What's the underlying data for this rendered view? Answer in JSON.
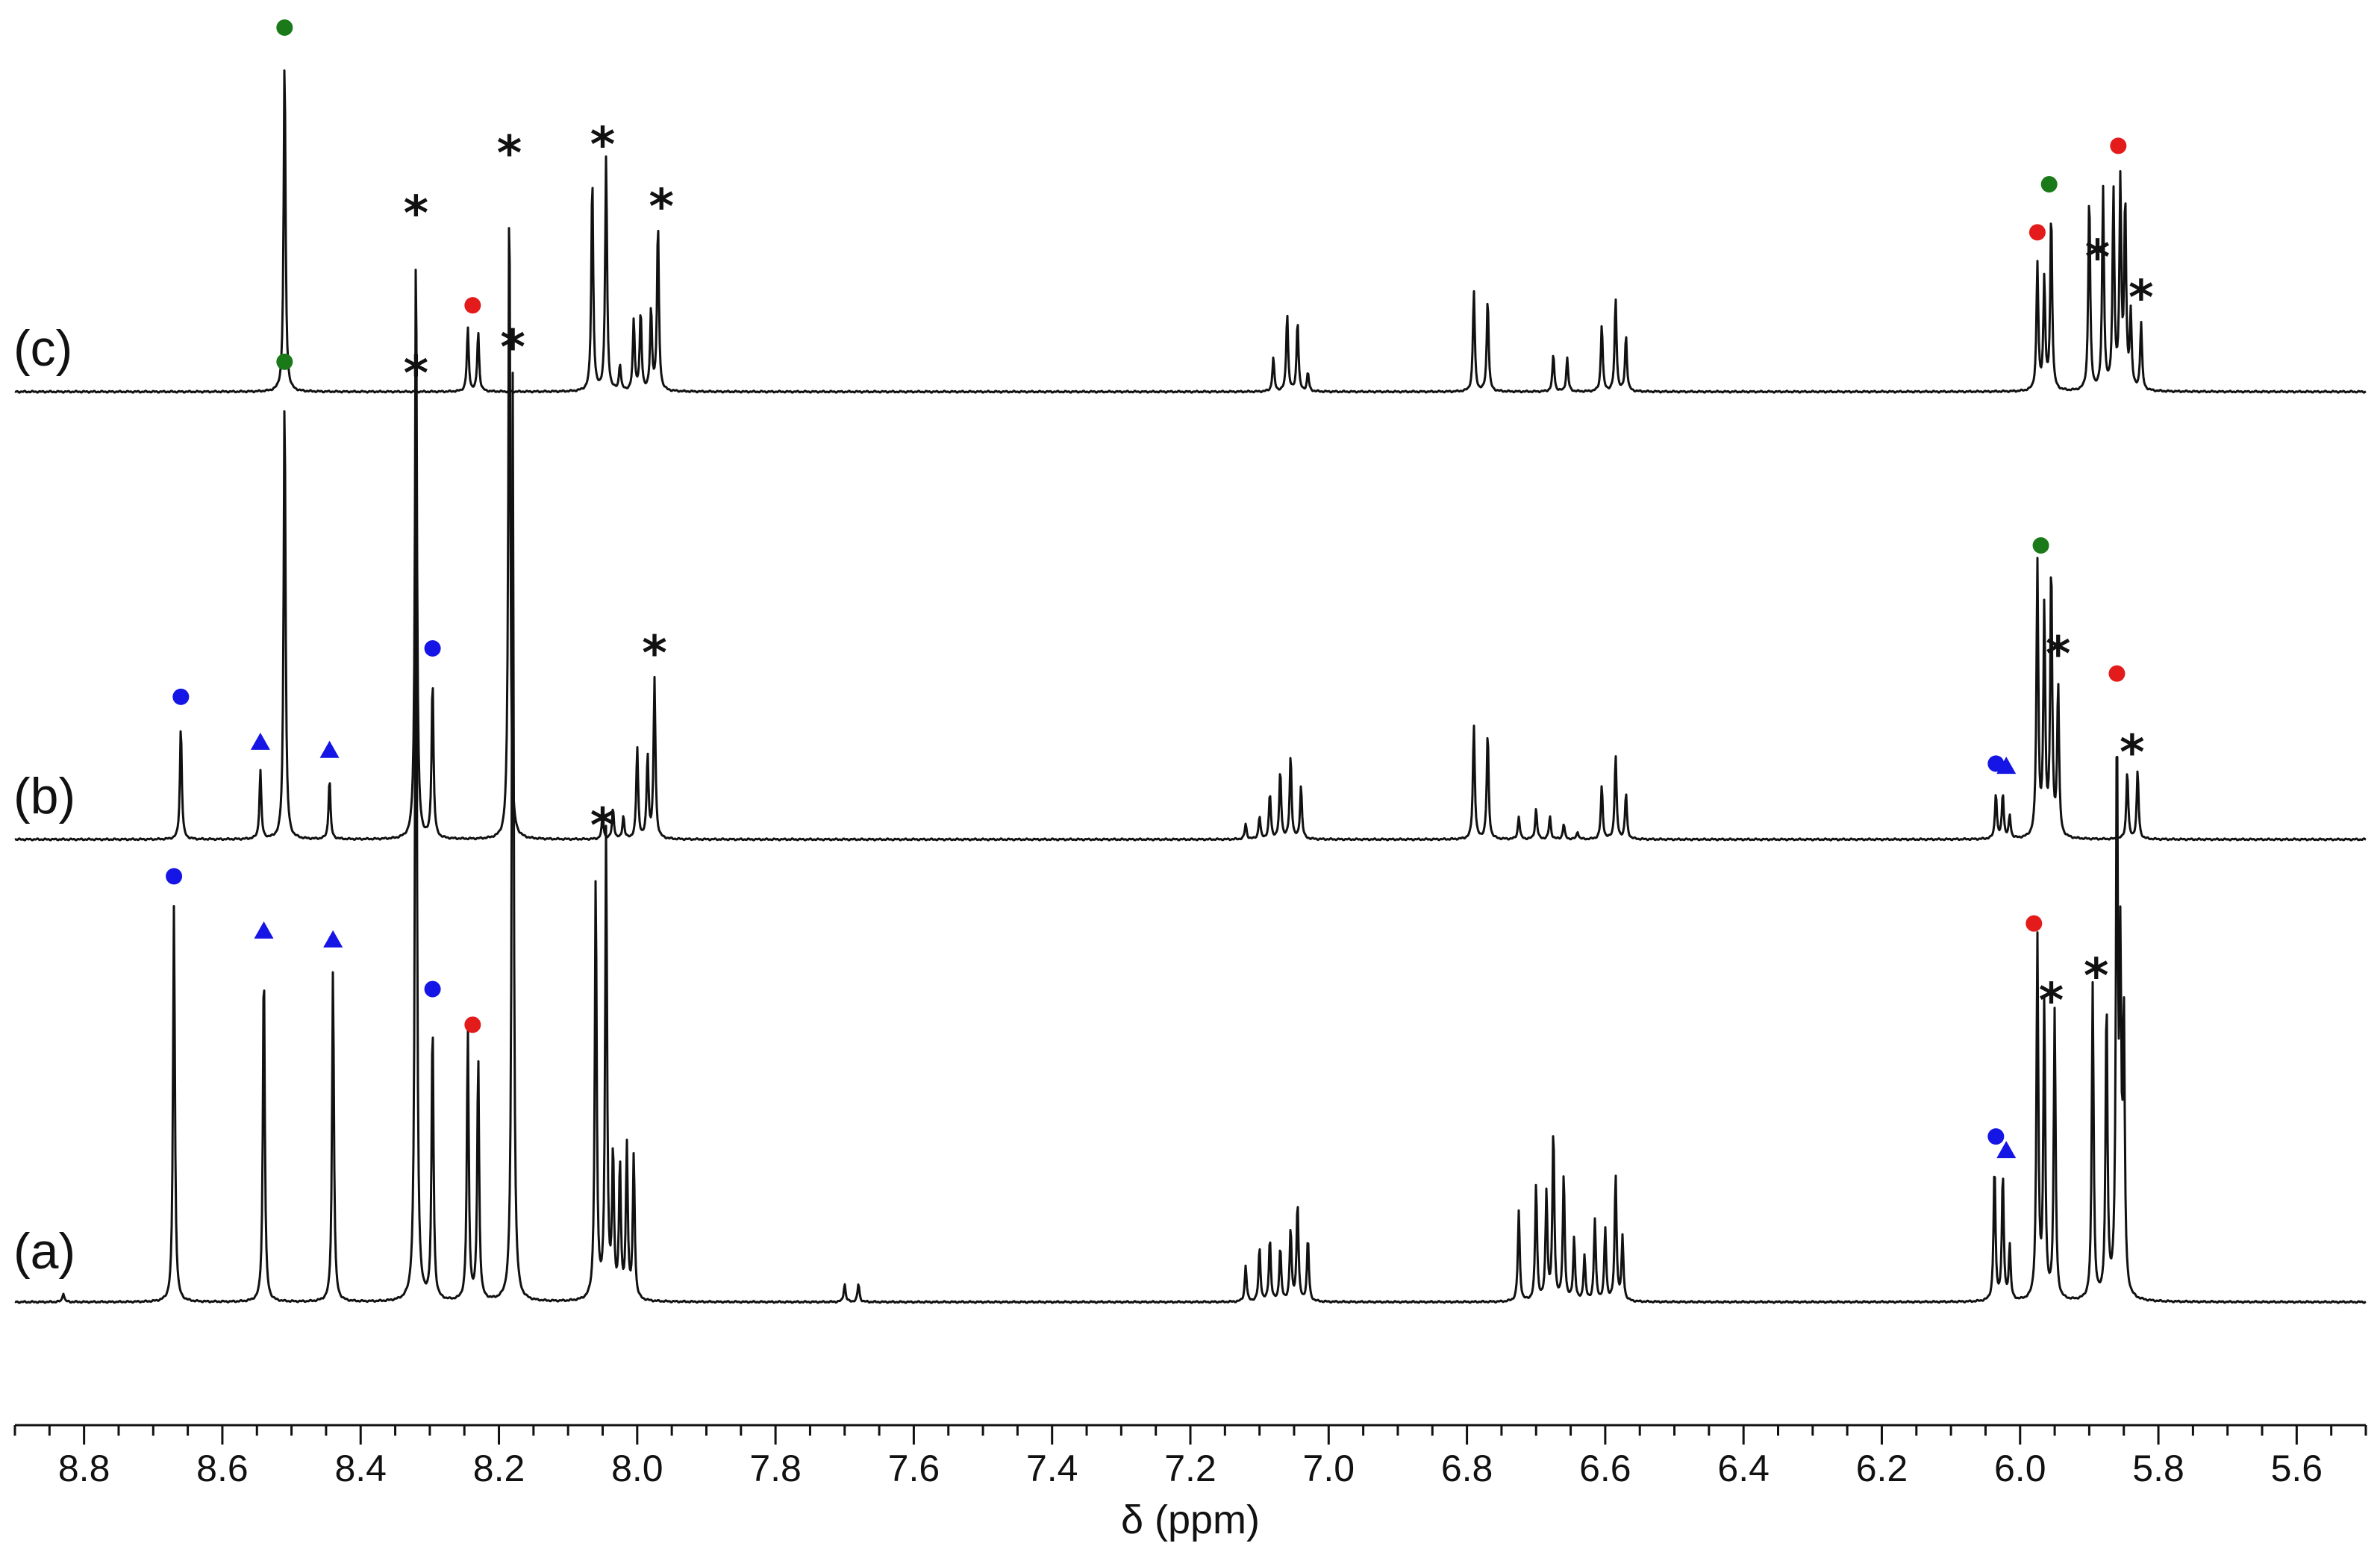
{
  "chart_data": {
    "type": "line",
    "description_free": true,
    "xlabel": "δ (ppm)",
    "xlim": [
      8.9,
      5.5
    ],
    "x_reversed": true,
    "xticks": [
      "8.8",
      "8.6",
      "8.4",
      "8.2",
      "8.0",
      "7.8",
      "7.6",
      "7.4",
      "7.2",
      "7.0",
      "6.8",
      "6.6",
      "6.4",
      "6.2",
      "6.0",
      "5.8",
      "5.6"
    ],
    "marker_colors": {
      "green": "#1a7a1a",
      "red": "#e31b1b",
      "blue": "#1515e6"
    },
    "series": [
      {
        "label": "(a)",
        "peaks": [
          [
            8.67,
            0.44
          ],
          [
            8.54,
            0.38
          ],
          [
            8.44,
            0.37
          ],
          [
            8.32,
            1.0
          ],
          [
            8.296,
            0.31
          ],
          [
            8.245,
            0.3
          ],
          [
            8.23,
            0.27
          ],
          [
            8.18,
            1.03
          ],
          [
            8.06,
            0.47
          ],
          [
            8.045,
            0.52
          ],
          [
            8.035,
            0.16
          ],
          [
            8.025,
            0.15
          ],
          [
            8.015,
            0.17
          ],
          [
            8.005,
            0.16
          ],
          [
            7.12,
            0.04
          ],
          [
            7.1,
            0.06
          ],
          [
            7.085,
            0.07
          ],
          [
            7.07,
            0.06
          ],
          [
            7.055,
            0.08
          ],
          [
            7.045,
            0.11
          ],
          [
            7.03,
            0.07
          ],
          [
            6.725,
            0.1
          ],
          [
            6.7,
            0.13
          ],
          [
            6.685,
            0.12
          ],
          [
            6.675,
            0.19
          ],
          [
            6.66,
            0.14
          ],
          [
            6.645,
            0.07
          ],
          [
            6.63,
            0.05
          ],
          [
            6.615,
            0.09
          ],
          [
            6.6,
            0.08
          ],
          [
            6.585,
            0.14
          ],
          [
            6.575,
            0.07
          ],
          [
            6.037,
            0.15
          ],
          [
            6.025,
            0.14
          ],
          [
            6.015,
            0.06
          ],
          [
            5.975,
            0.4
          ],
          [
            5.965,
            0.33
          ],
          [
            5.95,
            0.32
          ],
          [
            5.895,
            0.35
          ],
          [
            5.875,
            0.33
          ],
          [
            5.86,
            0.62
          ],
          [
            5.855,
            0.35
          ],
          [
            5.85,
            0.3
          ],
          [
            8.83,
            0.01
          ],
          [
            7.7,
            0.02
          ],
          [
            7.68,
            0.02
          ]
        ],
        "markers": [
          {
            "x": 8.67,
            "shape": "circle",
            "color": "blue"
          },
          {
            "x": 8.54,
            "shape": "triangle",
            "color": "blue"
          },
          {
            "x": 8.44,
            "shape": "triangle",
            "color": "blue"
          },
          {
            "x": 8.32,
            "shape": "star",
            "color": "black"
          },
          {
            "x": 8.296,
            "shape": "circle",
            "color": "blue"
          },
          {
            "x": 8.238,
            "shape": "circle",
            "color": "red"
          },
          {
            "x": 8.18,
            "shape": "star",
            "color": "black"
          },
          {
            "x": 8.05,
            "shape": "star",
            "color": "black"
          },
          {
            "x": 6.035,
            "shape": "circle",
            "color": "blue"
          },
          {
            "x": 6.02,
            "shape": "triangle",
            "color": "blue"
          },
          {
            "x": 5.98,
            "shape": "circle",
            "color": "red"
          },
          {
            "x": 5.955,
            "shape": "star",
            "color": "black"
          },
          {
            "x": 5.89,
            "shape": "star",
            "color": "black"
          },
          {
            "x": 5.86,
            "shape": "circle",
            "color": "red"
          }
        ]
      },
      {
        "label": "(b)",
        "peaks": [
          [
            8.66,
            0.15
          ],
          [
            8.545,
            0.09
          ],
          [
            8.51,
            0.59
          ],
          [
            8.445,
            0.08
          ],
          [
            8.32,
            0.79
          ],
          [
            8.296,
            0.21
          ],
          [
            8.185,
            0.87
          ],
          [
            8.05,
            0.03
          ],
          [
            8.035,
            0.04
          ],
          [
            8.02,
            0.03
          ],
          [
            8.0,
            0.12
          ],
          [
            7.985,
            0.11
          ],
          [
            7.975,
            0.21
          ],
          [
            7.12,
            0.02
          ],
          [
            7.1,
            0.03
          ],
          [
            7.085,
            0.06
          ],
          [
            7.07,
            0.09
          ],
          [
            7.055,
            0.11
          ],
          [
            7.04,
            0.07
          ],
          [
            6.79,
            0.15
          ],
          [
            6.77,
            0.14
          ],
          [
            6.725,
            0.03
          ],
          [
            6.7,
            0.04
          ],
          [
            6.68,
            0.03
          ],
          [
            6.66,
            0.02
          ],
          [
            6.64,
            0.01
          ],
          [
            6.605,
            0.07
          ],
          [
            6.585,
            0.11
          ],
          [
            6.57,
            0.06
          ],
          [
            6.035,
            0.06
          ],
          [
            6.025,
            0.06
          ],
          [
            6.015,
            0.03
          ],
          [
            5.975,
            0.36
          ],
          [
            5.965,
            0.3
          ],
          [
            5.955,
            0.36
          ],
          [
            5.945,
            0.2
          ],
          [
            5.845,
            0.09
          ],
          [
            5.83,
            0.09
          ]
        ],
        "markers": [
          {
            "x": 8.66,
            "shape": "circle",
            "color": "blue"
          },
          {
            "x": 8.545,
            "shape": "triangle",
            "color": "blue"
          },
          {
            "x": 8.51,
            "shape": "circle",
            "color": "green"
          },
          {
            "x": 8.445,
            "shape": "triangle",
            "color": "blue"
          },
          {
            "x": 8.32,
            "shape": "star",
            "color": "black"
          },
          {
            "x": 8.296,
            "shape": "circle",
            "color": "blue"
          },
          {
            "x": 8.185,
            "shape": "star",
            "color": "black"
          },
          {
            "x": 7.975,
            "shape": "star",
            "color": "black"
          },
          {
            "x": 6.035,
            "shape": "circle",
            "color": "blue"
          },
          {
            "x": 6.02,
            "shape": "triangle",
            "color": "blue"
          },
          {
            "x": 5.97,
            "shape": "circle",
            "color": "green"
          },
          {
            "x": 5.945,
            "shape": "star",
            "color": "black"
          },
          {
            "x": 5.838,
            "shape": "star",
            "color": "black"
          }
        ]
      },
      {
        "label": "(c)",
        "peaks": [
          [
            8.51,
            0.9
          ],
          [
            8.245,
            0.17
          ],
          [
            8.23,
            0.16
          ],
          [
            8.065,
            0.58
          ],
          [
            8.045,
            0.63
          ],
          [
            8.025,
            0.07
          ],
          [
            8.005,
            0.19
          ],
          [
            7.995,
            0.21
          ],
          [
            7.98,
            0.22
          ],
          [
            7.97,
            0.45
          ],
          [
            7.08,
            0.09
          ],
          [
            7.06,
            0.21
          ],
          [
            7.045,
            0.19
          ],
          [
            7.03,
            0.05
          ],
          [
            6.79,
            0.27
          ],
          [
            6.77,
            0.25
          ],
          [
            6.675,
            0.1
          ],
          [
            6.655,
            0.09
          ],
          [
            6.605,
            0.18
          ],
          [
            6.585,
            0.25
          ],
          [
            6.57,
            0.15
          ],
          [
            5.975,
            0.34
          ],
          [
            5.965,
            0.3
          ],
          [
            5.955,
            0.48
          ],
          [
            5.9,
            0.53
          ],
          [
            5.88,
            0.54
          ],
          [
            5.865,
            0.53
          ],
          [
            5.855,
            0.55
          ],
          [
            5.848,
            0.5
          ],
          [
            5.84,
            0.2
          ],
          [
            5.825,
            0.18
          ]
        ],
        "markers": [
          {
            "x": 8.51,
            "shape": "circle",
            "color": "green"
          },
          {
            "x": 8.238,
            "shape": "circle",
            "color": "red"
          },
          {
            "x": 8.05,
            "shape": "star",
            "color": "black"
          },
          {
            "x": 7.965,
            "shape": "star",
            "color": "black"
          },
          {
            "x": 5.975,
            "shape": "circle",
            "color": "red"
          },
          {
            "x": 5.958,
            "shape": "circle",
            "color": "green"
          },
          {
            "x": 5.888,
            "shape": "star",
            "color": "black"
          },
          {
            "x": 5.858,
            "shape": "circle",
            "color": "red"
          },
          {
            "x": 5.825,
            "shape": "star",
            "color": "black"
          }
        ]
      }
    ]
  }
}
